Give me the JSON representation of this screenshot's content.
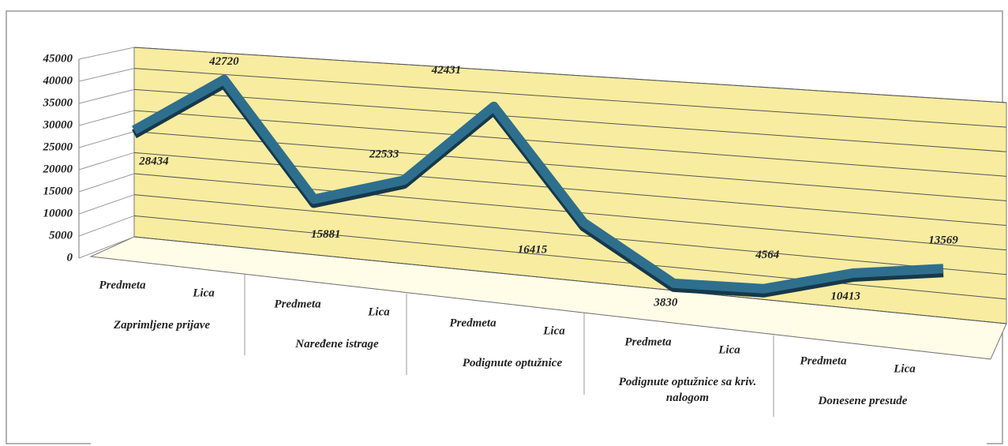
{
  "chart_data": {
    "type": "line",
    "categories": [
      "Predmeta",
      "Lica",
      "Predmeta",
      "Lica",
      "Predmeta",
      "Lica",
      "Predmeta",
      "Lica",
      "Predmeta",
      "Lica"
    ],
    "groups": [
      "Zaprimljene prijave",
      "Naređene istrage",
      "Podignute optužnice",
      "Podignute optužnice sa kriv. nalogom",
      "Donesene presude"
    ],
    "series": [
      {
        "color": "#2e6f8e",
        "values": [
          28434,
          42720,
          15881,
          22533,
          42431,
          16415,
          3830,
          4564,
          10413,
          13569
        ]
      }
    ],
    "ylim": [
      0,
      45000
    ],
    "yticks": [
      0,
      5000,
      10000,
      15000,
      20000,
      25000,
      30000,
      35000,
      40000,
      45000
    ],
    "grid": true
  }
}
